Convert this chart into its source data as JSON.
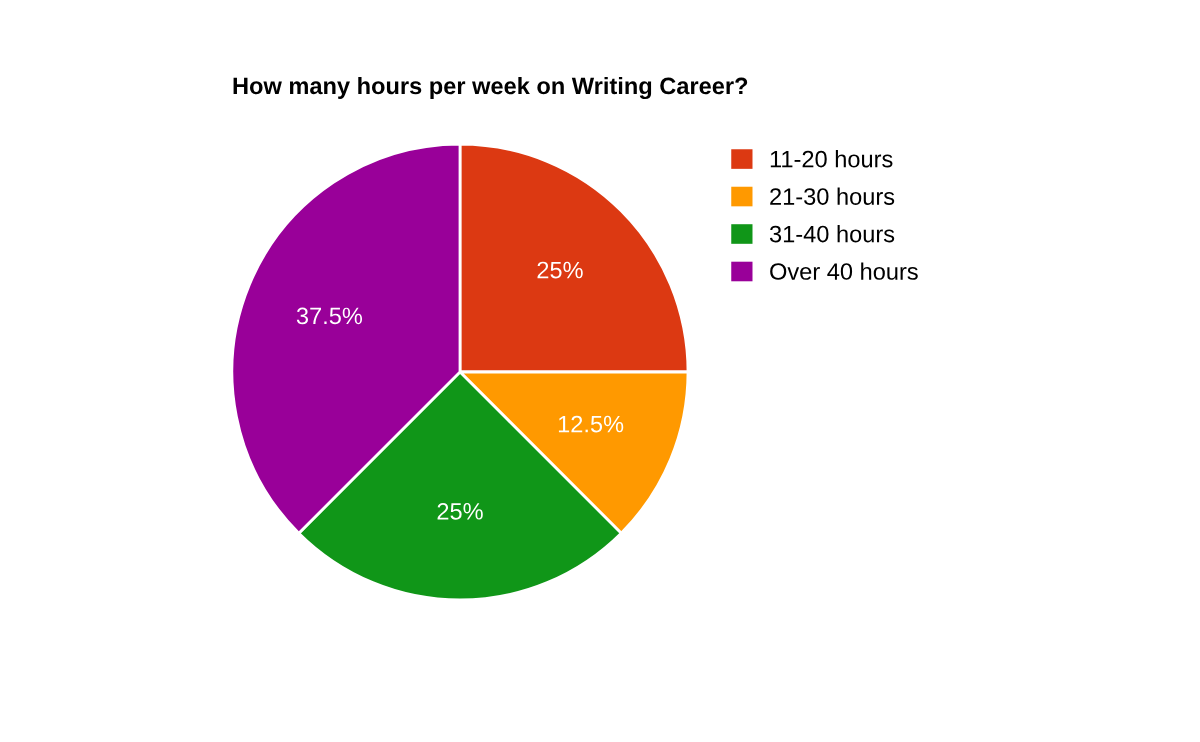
{
  "chart_data": {
    "type": "pie",
    "title": "How many hours per week on Writing Career?",
    "categories": [
      "11-20 hours",
      "21-30 hours",
      "31-40 hours",
      "Over 40 hours"
    ],
    "values": [
      25,
      12.5,
      25,
      37.5
    ],
    "value_labels": [
      "25%",
      "12.5%",
      "25%",
      "37.5%"
    ],
    "colors": [
      "#dc3912",
      "#ff9900",
      "#109618",
      "#990099"
    ],
    "legend": "right"
  }
}
